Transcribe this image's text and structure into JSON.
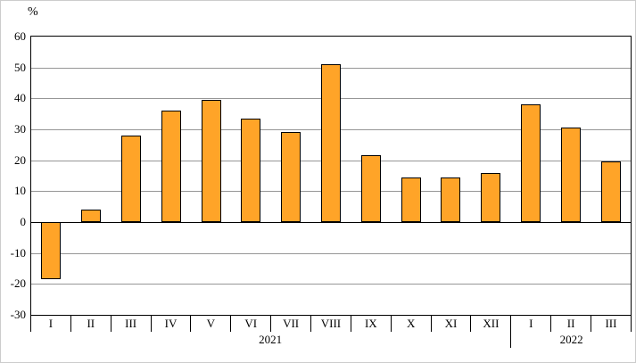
{
  "chart_data": {
    "type": "bar",
    "title": "",
    "unit_label": "%",
    "categories": [
      "I",
      "II",
      "III",
      "IV",
      "V",
      "VI",
      "VII",
      "VIII",
      "IX",
      "X",
      "XI",
      "XII",
      "I",
      "II",
      "III"
    ],
    "values": [
      -18.5,
      4,
      28,
      36,
      39.5,
      33.5,
      29,
      51,
      21.5,
      14.5,
      14.5,
      16,
      38,
      30.5,
      19.5
    ],
    "groups": [
      {
        "label": "2021",
        "span": 12
      },
      {
        "label": "2022",
        "span": 3
      }
    ],
    "ylim": [
      -30,
      60
    ],
    "ytick_step": 10,
    "yticks": [
      60,
      50,
      40,
      30,
      20,
      10,
      0,
      -10,
      -20,
      -30
    ],
    "bar_color": "#FFA428",
    "bar_border_color": "#000000",
    "gridline_color": "#969696",
    "grid": true,
    "legend": "none"
  }
}
